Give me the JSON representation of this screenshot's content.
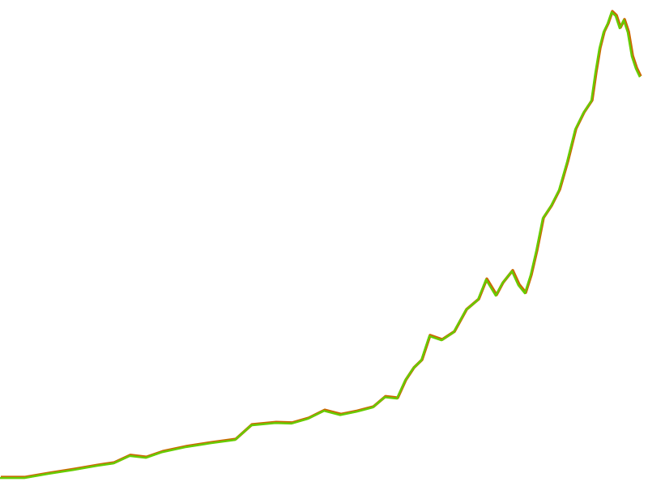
{
  "chart_data": {
    "type": "line",
    "x": [
      0,
      30,
      60,
      90,
      120,
      140,
      160,
      180,
      200,
      230,
      260,
      290,
      310,
      340,
      360,
      380,
      400,
      420,
      440,
      460,
      475,
      490,
      500,
      510,
      520,
      530,
      545,
      560,
      575,
      590,
      600,
      612,
      620,
      632,
      640,
      648,
      655,
      662,
      670,
      680,
      690,
      700,
      710,
      720,
      730,
      735,
      740,
      745,
      750,
      755,
      760,
      765,
      770,
      775,
      780,
      785,
      790
    ],
    "values": [
      0,
      0,
      0.9,
      1.7,
      2.6,
      3.1,
      4.7,
      4.3,
      5.5,
      6.6,
      7.4,
      8.1,
      11.2,
      11.7,
      11.6,
      12.6,
      14.3,
      13.4,
      14.1,
      15,
      17.2,
      16.9,
      20.7,
      23.3,
      25,
      30.2,
      29.3,
      31,
      35.7,
      37.9,
      42.2,
      38.8,
      41.4,
      44,
      41,
      39.3,
      43.1,
      48.3,
      55.2,
      57.8,
      61.2,
      67.2,
      74.1,
      77.6,
      80.2,
      86.2,
      91.4,
      94.8,
      96.6,
      99.1,
      98.3,
      95.7,
      97.4,
      94.8,
      89.7,
      87.1,
      85.3
    ],
    "xlim": [
      0,
      800
    ],
    "ylim": [
      -1.7,
      101.7
    ],
    "color": "#66cc00",
    "edge_color": "#cc6600"
  }
}
